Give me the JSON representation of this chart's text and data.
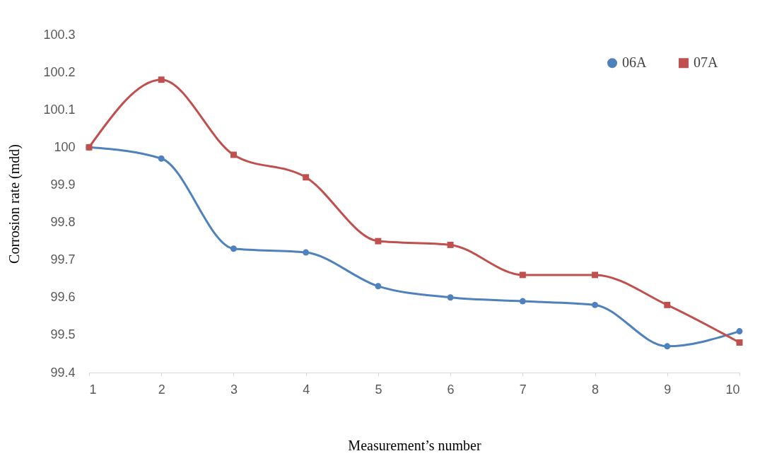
{
  "chart_data": {
    "type": "line",
    "xlabel": "Measurement’s number",
    "ylabel": "Corrosion rate (mdd)",
    "x": [
      1,
      2,
      3,
      4,
      5,
      6,
      7,
      8,
      9,
      10
    ],
    "series": [
      {
        "name": "06A",
        "color": "#4f81bd",
        "marker": "circle",
        "values": [
          100.0,
          99.97,
          99.73,
          99.72,
          99.63,
          99.6,
          99.59,
          99.58,
          99.47,
          99.51
        ]
      },
      {
        "name": "07A",
        "color": "#c0504d",
        "marker": "square",
        "values": [
          100.0,
          100.18,
          99.98,
          99.92,
          99.75,
          99.74,
          99.66,
          99.66,
          99.58,
          99.48
        ]
      }
    ],
    "xlim": [
      1,
      10
    ],
    "xticks": [
      1,
      2,
      3,
      4,
      5,
      6,
      7,
      8,
      9,
      10
    ],
    "ylim": [
      99.4,
      100.3
    ],
    "yticks": [
      99.4,
      99.5,
      99.6,
      99.7,
      99.8,
      99.9,
      100,
      100.1,
      100.2,
      100.3
    ],
    "grid": false,
    "legend": "top right"
  }
}
